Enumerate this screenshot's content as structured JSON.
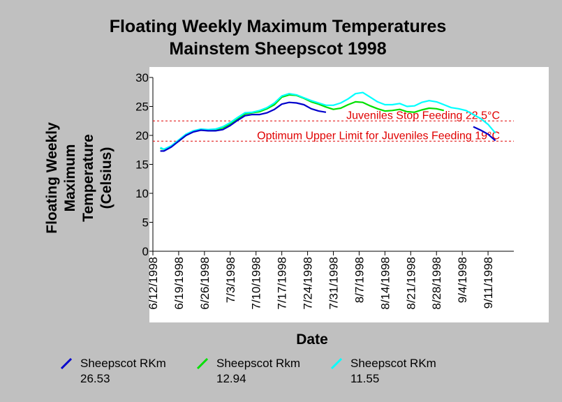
{
  "chart_data": {
    "type": "line",
    "title": "Floating Weekly Maximum Temperatures",
    "subtitle": "Mainstem Sheepscot 1998",
    "xlabel": "Date",
    "ylabel_lines": [
      "Floating Weekly",
      "Maximum",
      "Temperature",
      "(Celsius)"
    ],
    "x_tick_labels": [
      "6/12/1998",
      "6/19/1998",
      "6/26/1998",
      "7/3/1998",
      "7/10/1998",
      "7/17/1998",
      "7/24/1998",
      "7/31/1998",
      "8/7/1998",
      "8/14/1998",
      "8/21/1998",
      "8/28/1998",
      "9/4/1998",
      "9/11/1998"
    ],
    "xlim": [
      "1998-06-12",
      "1998-09-18"
    ],
    "ylim": [
      0,
      30
    ],
    "y_ticks": [
      0,
      5,
      10,
      15,
      20,
      25,
      30
    ],
    "grid": false,
    "legend_position": "bottom",
    "reference_lines": [
      {
        "y": 22.5,
        "label": "Juveniles Stop Feeding 22.5°C",
        "color": "#e00000",
        "style": "dashed"
      },
      {
        "y": 19,
        "label": "Optimum Upper Limit for Juveniles Feeding 19°C",
        "color": "#e00000",
        "style": "dashed"
      }
    ],
    "series": [
      {
        "name_lines": [
          "Sheepscot RKm",
          "26.53"
        ],
        "color": "#0000cc",
        "segments": [
          [
            [
              "1998-06-14",
              17.3
            ],
            [
              "1998-06-15",
              17.3
            ],
            [
              "1998-06-17",
              18.0
            ],
            [
              "1998-06-19",
              19.0
            ],
            [
              "1998-06-21",
              20.0
            ],
            [
              "1998-06-23",
              20.6
            ],
            [
              "1998-06-25",
              20.9
            ],
            [
              "1998-06-27",
              20.8
            ],
            [
              "1998-06-29",
              20.8
            ],
            [
              "1998-07-01",
              21.0
            ],
            [
              "1998-07-03",
              21.7
            ],
            [
              "1998-07-05",
              22.6
            ],
            [
              "1998-07-07",
              23.4
            ],
            [
              "1998-07-09",
              23.6
            ],
            [
              "1998-07-11",
              23.6
            ],
            [
              "1998-07-13",
              23.9
            ],
            [
              "1998-07-15",
              24.5
            ],
            [
              "1998-07-17",
              25.4
            ],
            [
              "1998-07-19",
              25.7
            ],
            [
              "1998-07-21",
              25.6
            ],
            [
              "1998-07-23",
              25.3
            ],
            [
              "1998-07-25",
              24.6
            ],
            [
              "1998-07-27",
              24.2
            ],
            [
              "1998-07-29",
              24.0
            ]
          ],
          [
            [
              "1998-09-07",
              21.5
            ],
            [
              "1998-09-09",
              20.9
            ],
            [
              "1998-09-11",
              20.2
            ],
            [
              "1998-09-13",
              19.1
            ]
          ]
        ]
      },
      {
        "name_lines": [
          "Sheepscot Rkm",
          "12.94"
        ],
        "color": "#00e000",
        "segments": [
          [
            [
              "1998-06-14",
              17.8
            ],
            [
              "1998-06-15",
              17.6
            ],
            [
              "1998-06-17",
              18.1
            ],
            [
              "1998-06-19",
              19.0
            ],
            [
              "1998-06-21",
              20.0
            ],
            [
              "1998-06-23",
              20.7
            ],
            [
              "1998-06-25",
              21.0
            ],
            [
              "1998-06-27",
              20.9
            ],
            [
              "1998-06-29",
              21.0
            ],
            [
              "1998-07-01",
              21.3
            ],
            [
              "1998-07-03",
              22.0
            ],
            [
              "1998-07-05",
              22.9
            ],
            [
              "1998-07-07",
              23.7
            ],
            [
              "1998-07-09",
              23.9
            ],
            [
              "1998-07-11",
              24.1
            ],
            [
              "1998-07-13",
              24.6
            ],
            [
              "1998-07-15",
              25.3
            ],
            [
              "1998-07-17",
              26.6
            ],
            [
              "1998-07-19",
              27.0
            ],
            [
              "1998-07-21",
              26.9
            ],
            [
              "1998-07-23",
              26.4
            ],
            [
              "1998-07-25",
              25.8
            ],
            [
              "1998-07-27",
              25.4
            ],
            [
              "1998-07-29",
              24.9
            ],
            [
              "1998-07-31",
              24.5
            ],
            [
              "1998-08-02",
              24.7
            ],
            [
              "1998-08-04",
              25.3
            ],
            [
              "1998-08-06",
              25.8
            ],
            [
              "1998-08-08",
              25.7
            ],
            [
              "1998-08-10",
              25.1
            ],
            [
              "1998-08-12",
              24.6
            ],
            [
              "1998-08-14",
              24.2
            ],
            [
              "1998-08-16",
              24.3
            ],
            [
              "1998-08-18",
              24.5
            ],
            [
              "1998-08-20",
              24.1
            ],
            [
              "1998-08-22",
              24.0
            ],
            [
              "1998-08-24",
              24.4
            ],
            [
              "1998-08-26",
              24.7
            ],
            [
              "1998-08-28",
              24.6
            ],
            [
              "1998-08-30",
              24.3
            ]
          ]
        ]
      },
      {
        "name_lines": [
          "Sheepscot RKm",
          "11.55"
        ],
        "color": "#00ffff",
        "segments": [
          [
            [
              "1998-06-14",
              17.9
            ],
            [
              "1998-06-15",
              17.6
            ],
            [
              "1998-06-17",
              18.2
            ],
            [
              "1998-06-19",
              19.2
            ],
            [
              "1998-06-21",
              20.2
            ],
            [
              "1998-06-23",
              20.8
            ],
            [
              "1998-06-25",
              21.1
            ],
            [
              "1998-06-27",
              21.0
            ],
            [
              "1998-06-29",
              21.1
            ],
            [
              "1998-07-01",
              21.5
            ],
            [
              "1998-07-03",
              22.2
            ],
            [
              "1998-07-05",
              23.1
            ],
            [
              "1998-07-07",
              23.9
            ],
            [
              "1998-07-09",
              24.0
            ],
            [
              "1998-07-11",
              24.3
            ],
            [
              "1998-07-13",
              24.8
            ],
            [
              "1998-07-15",
              25.6
            ],
            [
              "1998-07-17",
              26.8
            ],
            [
              "1998-07-19",
              27.2
            ],
            [
              "1998-07-21",
              27.0
            ],
            [
              "1998-07-23",
              26.5
            ],
            [
              "1998-07-25",
              26.0
            ],
            [
              "1998-07-27",
              25.6
            ],
            [
              "1998-07-29",
              25.2
            ],
            [
              "1998-07-31",
              25.2
            ],
            [
              "1998-08-02",
              25.6
            ],
            [
              "1998-08-04",
              26.3
            ],
            [
              "1998-08-06",
              27.2
            ],
            [
              "1998-08-08",
              27.4
            ],
            [
              "1998-08-10",
              26.6
            ],
            [
              "1998-08-12",
              25.8
            ],
            [
              "1998-08-14",
              25.3
            ],
            [
              "1998-08-16",
              25.3
            ],
            [
              "1998-08-18",
              25.5
            ],
            [
              "1998-08-20",
              25.0
            ],
            [
              "1998-08-22",
              25.1
            ],
            [
              "1998-08-24",
              25.7
            ],
            [
              "1998-08-26",
              26.0
            ],
            [
              "1998-08-28",
              25.8
            ],
            [
              "1998-08-30",
              25.3
            ],
            [
              "1998-09-01",
              24.8
            ],
            [
              "1998-09-03",
              24.6
            ],
            [
              "1998-09-05",
              24.3
            ],
            [
              "1998-09-07",
              23.6
            ],
            [
              "1998-09-09",
              22.9
            ],
            [
              "1998-09-11",
              21.9
            ],
            [
              "1998-09-13",
              20.4
            ]
          ]
        ]
      }
    ]
  }
}
